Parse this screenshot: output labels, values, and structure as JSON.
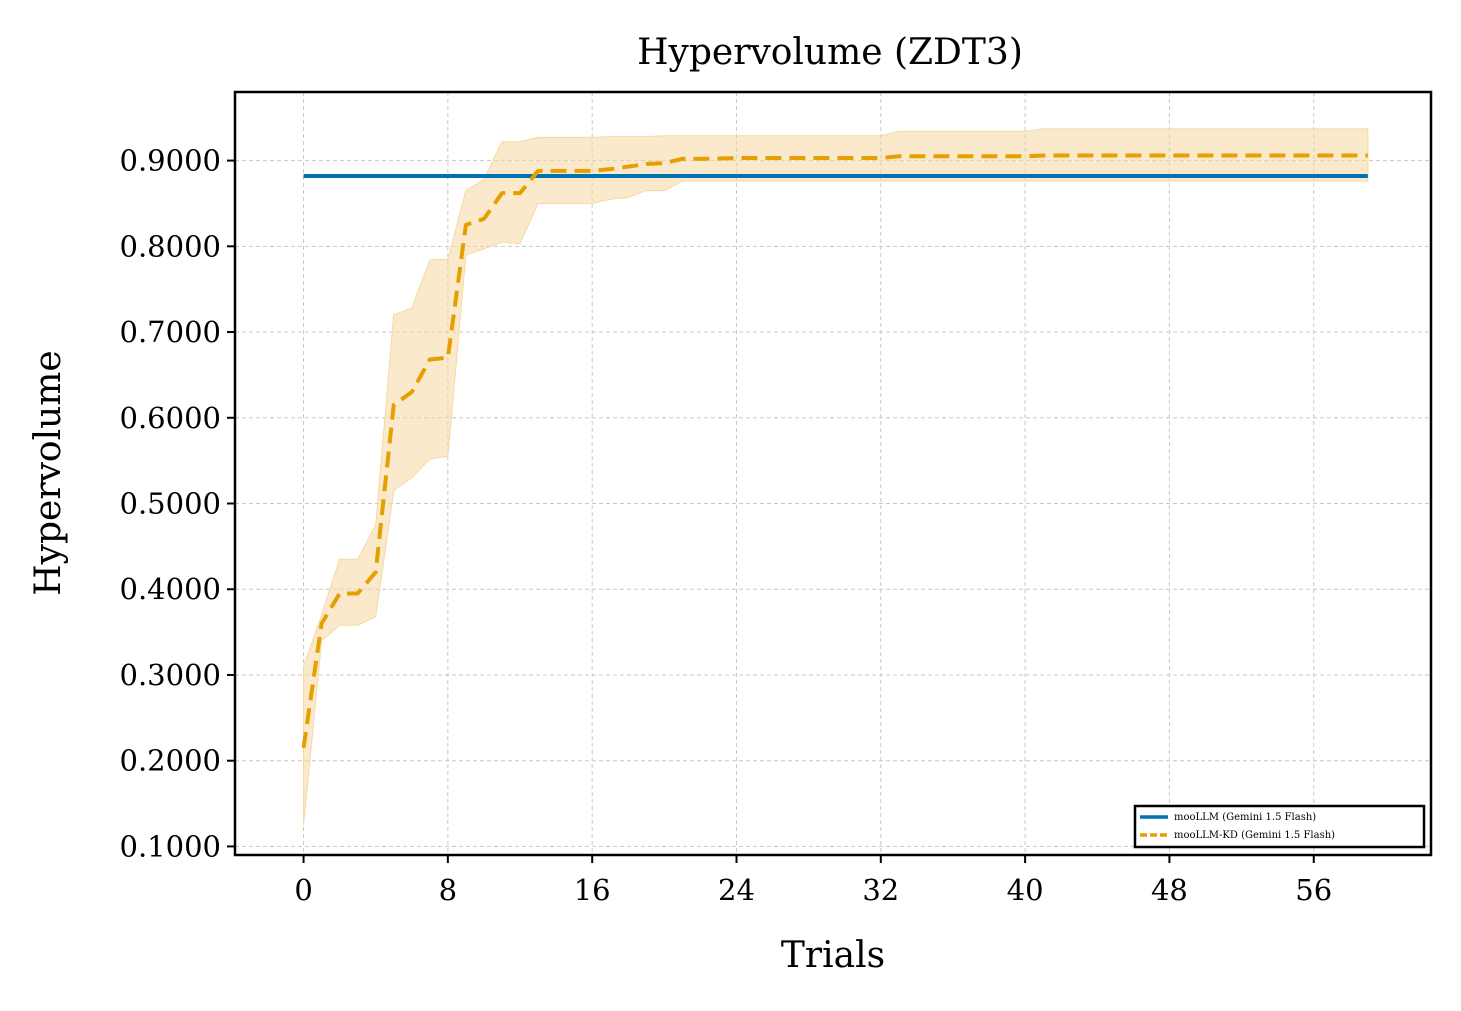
{
  "chart_data": {
    "type": "line",
    "title": "Hypervolume (ZDT3)",
    "xlabel": "Trials",
    "ylabel": "Hypervolume",
    "xlim": [
      -3.8,
      62.5
    ],
    "ylim": [
      0.09,
      0.98
    ],
    "xticks": [
      0,
      8,
      16,
      24,
      32,
      40,
      48,
      56
    ],
    "xtick_labels": [
      "0",
      "8",
      "16",
      "24",
      "32",
      "40",
      "48",
      "56"
    ],
    "yticks": [
      0.1,
      0.2,
      0.3,
      0.4,
      0.5,
      0.6,
      0.7,
      0.8,
      0.9
    ],
    "ytick_labels": [
      "0.1000",
      "0.2000",
      "0.3000",
      "0.4000",
      "0.5000",
      "0.6000",
      "0.7000",
      "0.8000",
      "0.9000"
    ],
    "grid": true,
    "legend_position": "bottom-right",
    "series": [
      {
        "name": "mooLLM (Gemini 1.5 Flash)",
        "color": "#0072b2",
        "style": "solid",
        "x": [
          0,
          59
        ],
        "y": [
          0.882,
          0.882
        ]
      },
      {
        "name": "mooLLM-KD (Gemini 1.5 Flash)",
        "color": "#e69f00",
        "style": "dashed",
        "band_color": "#f5d9a0",
        "x": [
          0,
          1,
          2,
          3,
          4,
          5,
          6,
          7,
          8,
          9,
          10,
          11,
          12,
          13,
          14,
          15,
          16,
          17,
          18,
          19,
          20,
          21,
          22,
          24,
          32,
          33,
          40,
          41,
          48,
          56,
          59
        ],
        "y": [
          0.215,
          0.36,
          0.395,
          0.395,
          0.42,
          0.615,
          0.63,
          0.668,
          0.67,
          0.825,
          0.832,
          0.862,
          0.862,
          0.888,
          0.888,
          0.888,
          0.888,
          0.89,
          0.893,
          0.896,
          0.897,
          0.902,
          0.902,
          0.903,
          0.903,
          0.905,
          0.905,
          0.906,
          0.906,
          0.906,
          0.906
        ],
        "upper": [
          0.31,
          0.37,
          0.435,
          0.435,
          0.475,
          0.72,
          0.728,
          0.784,
          0.785,
          0.865,
          0.878,
          0.922,
          0.922,
          0.927,
          0.927,
          0.927,
          0.927,
          0.928,
          0.928,
          0.928,
          0.929,
          0.929,
          0.929,
          0.929,
          0.929,
          0.934,
          0.934,
          0.937,
          0.937,
          0.937,
          0.937
        ],
        "lower": [
          0.125,
          0.34,
          0.358,
          0.358,
          0.368,
          0.515,
          0.53,
          0.552,
          0.555,
          0.79,
          0.797,
          0.805,
          0.803,
          0.85,
          0.85,
          0.85,
          0.85,
          0.855,
          0.857,
          0.865,
          0.865,
          0.876,
          0.876,
          0.876,
          0.876,
          0.876,
          0.876,
          0.876,
          0.876,
          0.876,
          0.876
        ]
      }
    ]
  }
}
